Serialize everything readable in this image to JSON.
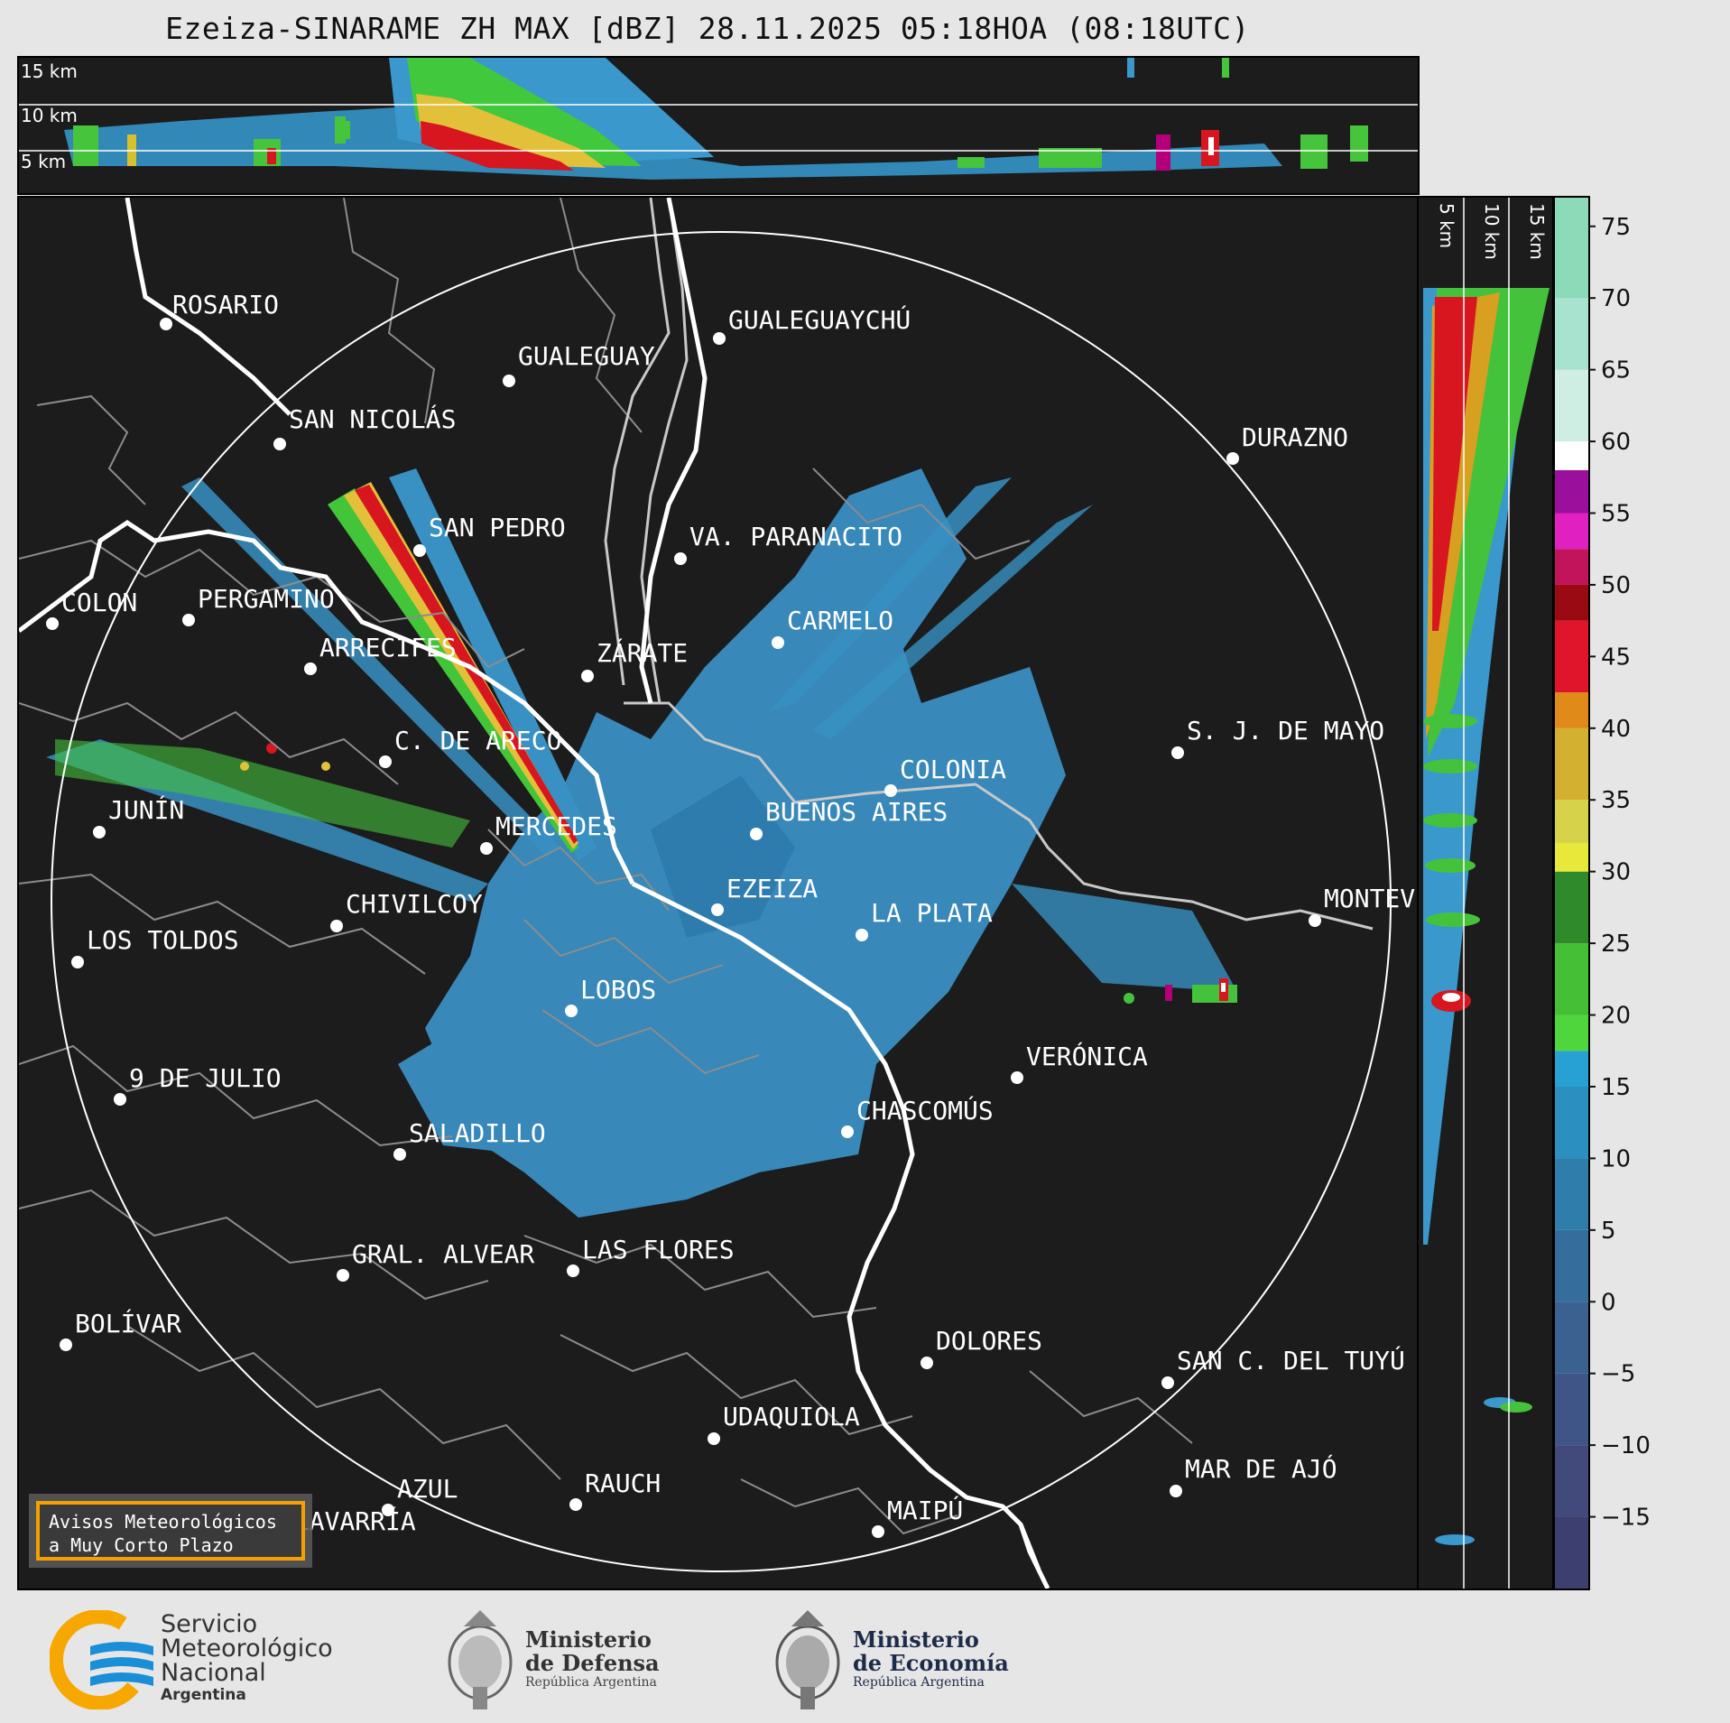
{
  "title": "Ezeiza-SINARAME ZH MAX [dBZ] 28.11.2025 05:18HOA (08:18UTC)",
  "top_panel": {
    "altitude_labels": [
      "15 km",
      "10 km",
      "5 km"
    ]
  },
  "side_panel": {
    "altitude_labels": [
      "5 km",
      "10 km",
      "15 km"
    ]
  },
  "colorbar": {
    "ticks": [
      "75",
      "70",
      "65",
      "60",
      "55",
      "50",
      "45",
      "40",
      "35",
      "30",
      "25",
      "20",
      "15",
      "10",
      "5",
      "0",
      "−5",
      "−10",
      "−15"
    ],
    "range": [
      -20,
      77
    ],
    "unit": "dBZ"
  },
  "cities": [
    {
      "name": "ROSARIO"
    },
    {
      "name": "GUALEGUAYCHÚ"
    },
    {
      "name": "GUALEGUAY"
    },
    {
      "name": "SAN NICOLÁS"
    },
    {
      "name": "DURAZNO"
    },
    {
      "name": "SAN PEDRO"
    },
    {
      "name": "VA. PARANACITO"
    },
    {
      "name": "COLON"
    },
    {
      "name": "PERGAMINO"
    },
    {
      "name": "CARMELO"
    },
    {
      "name": "ARRECIFES"
    },
    {
      "name": "ZÁRATE"
    },
    {
      "name": "S. J. DE MAYO"
    },
    {
      "name": "C. DE ARECO"
    },
    {
      "name": "COLONIA"
    },
    {
      "name": "JUNÍN"
    },
    {
      "name": "BUENOS AIRES"
    },
    {
      "name": "MERCEDES"
    },
    {
      "name": "MONTEVIDEO"
    },
    {
      "name": "EZEIZA"
    },
    {
      "name": "CHIVILCOY"
    },
    {
      "name": "LA PLATA"
    },
    {
      "name": "LOS TOLDOS"
    },
    {
      "name": "LOBOS"
    },
    {
      "name": "VERÓNICA"
    },
    {
      "name": "9 DE JULIO"
    },
    {
      "name": "CHASCOMÚS"
    },
    {
      "name": "SALADILLO"
    },
    {
      "name": "GRAL. ALVEAR"
    },
    {
      "name": "LAS FLORES"
    },
    {
      "name": "BOLÍVAR"
    },
    {
      "name": "DOLORES"
    },
    {
      "name": "SAN C. DEL TUYÚ"
    },
    {
      "name": "UDAQUIOLA"
    },
    {
      "name": "MAR DE AJÓ"
    },
    {
      "name": "AZUL"
    },
    {
      "name": "RAUCH"
    },
    {
      "name": "MAIPÚ"
    },
    {
      "name": "OLAVARRÍA"
    }
  ],
  "badge": {
    "line1": "Avisos Meteorológicos",
    "line2": "a Muy Corto Plazo"
  },
  "logos": {
    "smn": {
      "line1": "Servicio",
      "line2": "Meteorológico",
      "line3": "Nacional",
      "line4": "Argentina"
    },
    "defensa": {
      "line1": "Ministerio",
      "line2": "de Defensa",
      "line3": "República Argentina"
    },
    "economia": {
      "line1": "Ministerio",
      "line2": "de Economía",
      "line3": "República Argentina"
    }
  },
  "colors": {
    "background": "#1c1c1c",
    "accent_badge": "#f5a000",
    "smn_blue": "#1a8fd8",
    "smn_yellow": "#f7a800"
  }
}
